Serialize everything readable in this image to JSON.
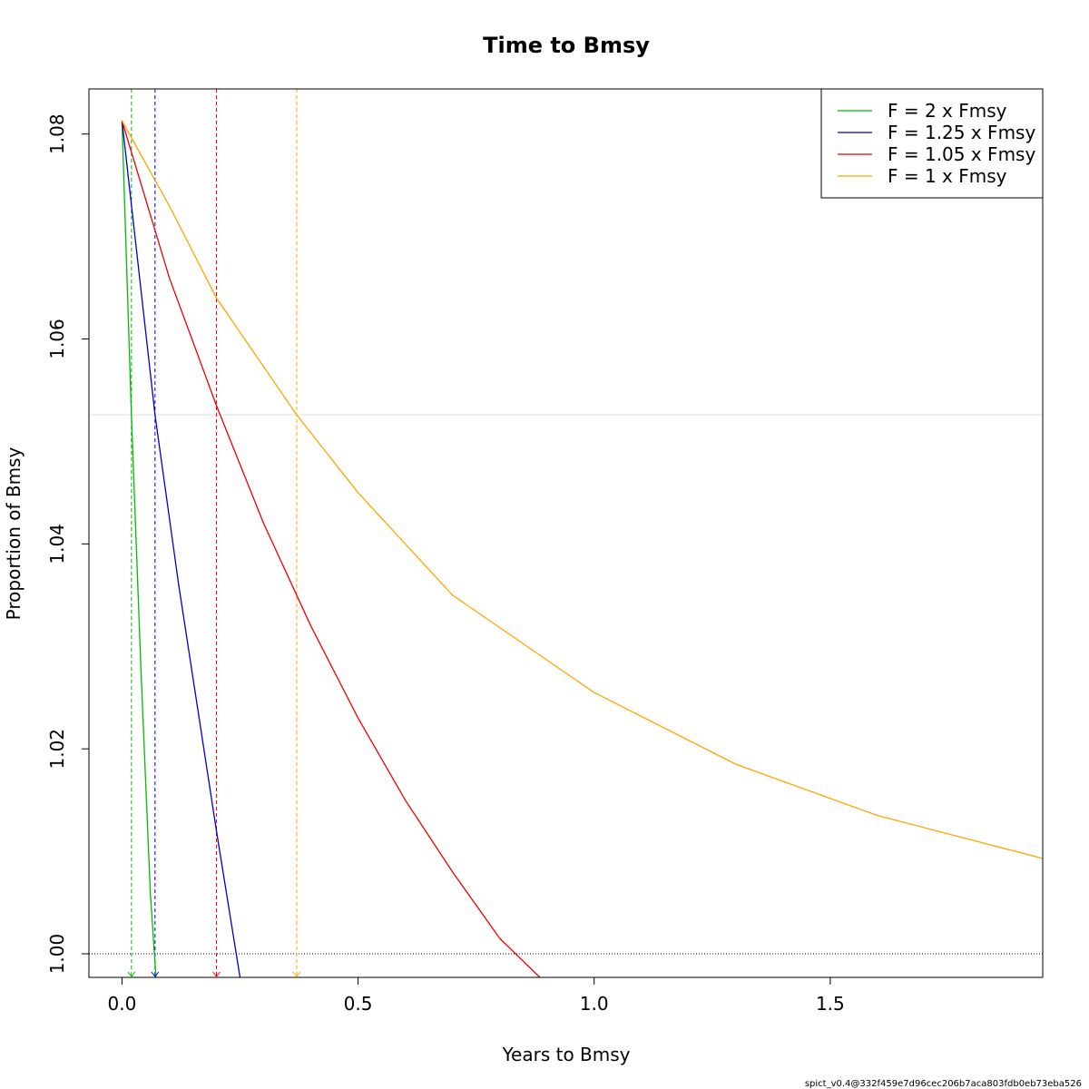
{
  "chart_data": {
    "type": "line",
    "title": "Time to Bmsy",
    "xlabel": "Years to Bmsy",
    "ylabel": "Proportion of Bmsy",
    "xlim": [
      -0.07,
      1.95
    ],
    "ylim": [
      0.9977,
      1.0844
    ],
    "x_ticks": [
      0.0,
      0.5,
      1.0,
      1.5
    ],
    "x_tick_labels": [
      "0.0",
      "0.5",
      "1.0",
      "1.5"
    ],
    "y_ticks": [
      1.0,
      1.02,
      1.04,
      1.06,
      1.08
    ],
    "y_tick_labels": [
      "1.00",
      "1.02",
      "1.04",
      "1.06",
      "1.08"
    ],
    "grid": false,
    "legend_position": "top-right",
    "reference_lines": {
      "bmsy_line": 1.0,
      "grey_horizontal": 1.0526
    },
    "series": [
      {
        "name": "F = 2 x Fmsy",
        "color": "#00bb00",
        "time_to_bmsy": 0.02,
        "x": [
          0.0,
          0.02,
          0.04,
          0.06,
          0.072
        ],
        "y": [
          1.0813,
          1.0526,
          1.028,
          1.006,
          0.9977
        ]
      },
      {
        "name": "F = 1.25 x Fmsy",
        "color": "#0000cc",
        "time_to_bmsy": 0.07,
        "x": [
          0.0,
          0.07,
          0.12,
          0.2,
          0.25
        ],
        "y": [
          1.0813,
          1.0526,
          1.036,
          1.012,
          0.9977
        ]
      },
      {
        "name": "F = 1.05 x Fmsy",
        "color": "#ee0000",
        "time_to_bmsy": 0.2,
        "x": [
          0.0,
          0.1,
          0.2,
          0.3,
          0.4,
          0.5,
          0.6,
          0.7,
          0.8,
          0.885
        ],
        "y": [
          1.0813,
          1.066,
          1.0535,
          1.042,
          1.032,
          1.023,
          1.015,
          1.008,
          1.0015,
          0.9977
        ]
      },
      {
        "name": "F = 1 x Fmsy",
        "color": "#ffa500",
        "time_to_bmsy": 0.37,
        "x": [
          0.0,
          0.1,
          0.2,
          0.37,
          0.5,
          0.7,
          1.0,
          1.3,
          1.6,
          1.95
        ],
        "y": [
          1.0813,
          1.073,
          1.064,
          1.0526,
          1.045,
          1.035,
          1.0255,
          1.0185,
          1.0135,
          1.0093
        ]
      }
    ]
  },
  "footer": "spict_v0.4@332f459e7d96cec206b7aca803fdb0eb73eba526"
}
